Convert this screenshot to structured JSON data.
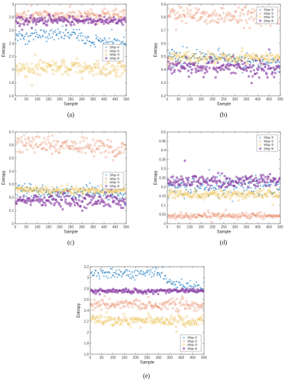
{
  "colors": {
    "ship1": "#2b83c4",
    "ship2": "#e0693a",
    "ship3": "#e9b63a",
    "ship4": "#8a3fa6"
  },
  "chart_data": [
    {
      "type": "scatter",
      "caption": "(a)",
      "xlabel": "Sample",
      "ylabel": "Entropy",
      "xlim": [
        0,
        500
      ],
      "ylim": [
        1.6,
        3.0
      ],
      "xticks": [
        0,
        50,
        100,
        150,
        200,
        250,
        300,
        350,
        400,
        450,
        500
      ],
      "yticks": [
        1.6,
        1.8,
        2.0,
        2.2,
        2.4,
        2.6,
        2.8,
        3.0
      ],
      "legend_position": "center-right",
      "series": [
        {
          "name": "Ship-①",
          "color": "#2b83c4",
          "marker": "plus",
          "levels": [
            [
              0,
              2.52
            ],
            [
              250,
              2.54
            ],
            [
              300,
              2.49
            ],
            [
              350,
              2.42
            ],
            [
              500,
              2.42
            ]
          ],
          "noise": 0.05
        },
        {
          "name": "Ship-②",
          "color": "#e0693a",
          "marker": "diamond",
          "levels": [
            [
              0,
              2.82
            ],
            [
              500,
              2.84
            ]
          ],
          "noise": 0.04
        },
        {
          "name": "Ship-③",
          "color": "#e9b63a",
          "marker": "circle",
          "levels": [
            [
              0,
              2.02
            ],
            [
              500,
              2.02
            ]
          ],
          "noise": 0.06
        },
        {
          "name": "Ship-④",
          "color": "#8a3fa6",
          "marker": "filled",
          "levels": [
            [
              0,
              2.75
            ],
            [
              500,
              2.75
            ]
          ],
          "noise": 0.035
        }
      ]
    },
    {
      "type": "scatter",
      "caption": "(b)",
      "xlabel": "Sample",
      "ylabel": "Entropy",
      "xlim": [
        0,
        500
      ],
      "ylim": [
        0.2,
        0.9
      ],
      "xticks": [
        0,
        50,
        100,
        150,
        200,
        250,
        300,
        350,
        400,
        450,
        500
      ],
      "yticks": [
        0.2,
        0.3,
        0.4,
        0.5,
        0.6,
        0.7,
        0.8,
        0.9
      ],
      "legend_position": "top-right",
      "series": [
        {
          "name": "Ship-①",
          "color": "#2b83c4",
          "marker": "plus",
          "levels": [
            [
              0,
              0.5
            ],
            [
              500,
              0.45
            ]
          ],
          "noise": 0.035
        },
        {
          "name": "Ship-②",
          "color": "#e0693a",
          "marker": "diamond",
          "levels": [
            [
              0,
              0.82
            ],
            [
              500,
              0.79
            ]
          ],
          "noise": 0.035
        },
        {
          "name": "Ship-③",
          "color": "#e9b63a",
          "marker": "circle",
          "levels": [
            [
              0,
              0.49
            ],
            [
              500,
              0.49
            ]
          ],
          "noise": 0.02
        },
        {
          "name": "Ship-④",
          "color": "#8a3fa6",
          "marker": "filled",
          "levels": [
            [
              0,
              0.42
            ],
            [
              500,
              0.41
            ]
          ],
          "noise": 0.03
        }
      ]
    },
    {
      "type": "scatter",
      "caption": "(c)",
      "xlabel": "Sample",
      "ylabel": "Entropy",
      "xlim": [
        0,
        500
      ],
      "ylim": [
        0.0,
        0.7
      ],
      "xticks": [
        0,
        50,
        100,
        150,
        200,
        250,
        300,
        350,
        400,
        450,
        500
      ],
      "yticks": [
        0.0,
        0.1,
        0.2,
        0.3,
        0.4,
        0.5,
        0.6,
        0.7
      ],
      "legend_position": "center-right",
      "series": [
        {
          "name": "Ship-①",
          "color": "#2b83c4",
          "marker": "plus",
          "levels": [
            [
              0,
              0.25
            ],
            [
              500,
              0.22
            ]
          ],
          "noise": 0.03
        },
        {
          "name": "Ship-②",
          "color": "#e0693a",
          "marker": "diamond",
          "levels": [
            [
              0,
              0.62
            ],
            [
              500,
              0.57
            ]
          ],
          "noise": 0.035
        },
        {
          "name": "Ship-③",
          "color": "#e9b63a",
          "marker": "circle",
          "levels": [
            [
              0,
              0.26
            ],
            [
              500,
              0.25
            ]
          ],
          "noise": 0.015
        },
        {
          "name": "Ship-④",
          "color": "#8a3fa6",
          "marker": "filled",
          "levels": [
            [
              0,
              0.18
            ],
            [
              500,
              0.17
            ]
          ],
          "noise": 0.025
        }
      ]
    },
    {
      "type": "scatter",
      "caption": "(d)",
      "xlabel": "Sample",
      "ylabel": "Entropy",
      "xlim": [
        0,
        500
      ],
      "ylim": [
        0.0,
        0.5
      ],
      "xticks": [
        0,
        50,
        100,
        150,
        200,
        250,
        300,
        350,
        400,
        450,
        500
      ],
      "yticks": [
        0.0,
        0.05,
        0.1,
        0.15,
        0.2,
        0.25,
        0.3,
        0.35,
        0.4,
        0.45,
        0.5
      ],
      "legend_position": "top-right",
      "series": [
        {
          "name": "Ship-①",
          "color": "#2b83c4",
          "marker": "plus",
          "levels": [
            [
              0,
              0.2
            ],
            [
              500,
              0.21
            ]
          ],
          "noise": 0.025
        },
        {
          "name": "Ship-②",
          "color": "#e0693a",
          "marker": "diamond",
          "levels": [
            [
              0,
              0.04
            ],
            [
              500,
              0.045
            ]
          ],
          "noise": 0.008
        },
        {
          "name": "Ship-③",
          "color": "#e9b63a",
          "marker": "circle",
          "levels": [
            [
              0,
              0.16
            ],
            [
              500,
              0.16
            ]
          ],
          "noise": 0.012
        },
        {
          "name": "Ship-④",
          "color": "#8a3fa6",
          "marker": "filled",
          "levels": [
            [
              0,
              0.23
            ],
            [
              500,
              0.23
            ]
          ],
          "noise": 0.018
        }
      ]
    },
    {
      "type": "scatter",
      "caption": "(e)",
      "xlabel": "Sample",
      "ylabel": "Entropy",
      "xlim": [
        0,
        500
      ],
      "ylim": [
        1.6,
        3.2
      ],
      "xticks": [
        0,
        50,
        100,
        150,
        200,
        250,
        300,
        350,
        400,
        450,
        500
      ],
      "yticks": [
        1.6,
        1.8,
        2.0,
        2.2,
        2.4,
        2.6,
        2.8,
        3.0,
        3.2
      ],
      "legend_position": "bottom-right",
      "series": [
        {
          "name": "Ship-①",
          "color": "#2b83c4",
          "marker": "plus",
          "levels": [
            [
              0,
              3.07
            ],
            [
              300,
              3.1
            ],
            [
              350,
              2.92
            ],
            [
              400,
              2.86
            ],
            [
              500,
              2.83
            ]
          ],
          "noise": 0.05
        },
        {
          "name": "Ship-②",
          "color": "#e0693a",
          "marker": "diamond",
          "levels": [
            [
              0,
              2.52
            ],
            [
              500,
              2.5
            ]
          ],
          "noise": 0.05
        },
        {
          "name": "Ship-③",
          "color": "#e9b63a",
          "marker": "circle",
          "levels": [
            [
              0,
              2.22
            ],
            [
              500,
              2.2
            ]
          ],
          "noise": 0.05
        },
        {
          "name": "Ship-④",
          "color": "#8a3fa6",
          "marker": "filled",
          "levels": [
            [
              0,
              2.75
            ],
            [
              500,
              2.76
            ]
          ],
          "noise": 0.02
        }
      ]
    }
  ]
}
